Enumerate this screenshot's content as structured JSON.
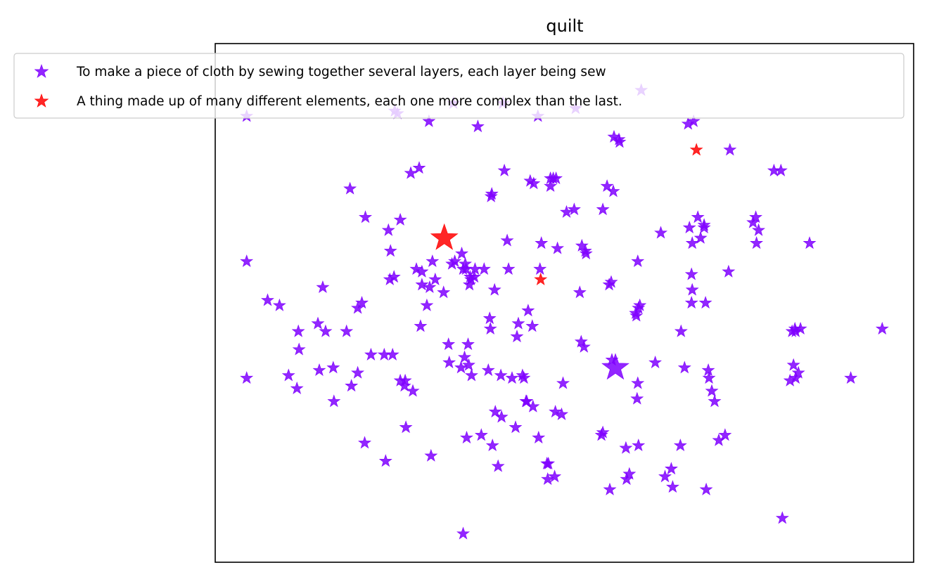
{
  "chart_data": {
    "type": "scatter",
    "title": "quilt",
    "xlabel": "",
    "ylabel": "",
    "xlim": [
      0,
      100
    ],
    "ylim": [
      0,
      100
    ],
    "grid": false,
    "legend_position": "top",
    "series": [
      {
        "name": "To make a piece of cloth by sewing together several layers, each layer being sew",
        "color": "#7f00ff",
        "marker": "star",
        "points": [
          [
            4.5,
            86
          ],
          [
            4.5,
            58
          ],
          [
            4.5,
            35.5
          ],
          [
            7.5,
            50.5
          ],
          [
            9.2,
            49.5
          ],
          [
            10.5,
            36
          ],
          [
            11.7,
            33.5
          ],
          [
            11.9,
            44.5
          ],
          [
            12,
            41
          ],
          [
            14.7,
            46
          ],
          [
            14.9,
            37
          ],
          [
            15.4,
            53
          ],
          [
            15.8,
            44.5
          ],
          [
            16.9,
            37.5
          ],
          [
            17,
            31
          ],
          [
            18.8,
            44.5
          ],
          [
            19.5,
            34
          ],
          [
            19.3,
            72
          ],
          [
            20.4,
            36.5
          ],
          [
            20.4,
            49
          ],
          [
            21,
            50
          ],
          [
            21.4,
            23
          ],
          [
            21.5,
            66.5
          ],
          [
            22.3,
            40
          ],
          [
            24.2,
            40
          ],
          [
            24.4,
            19.5
          ],
          [
            24.8,
            64
          ],
          [
            25,
            54.5
          ],
          [
            25.1,
            60
          ],
          [
            25.4,
            40
          ],
          [
            25.6,
            55
          ],
          [
            25.7,
            87
          ],
          [
            26.1,
            86.5
          ],
          [
            26.5,
            66
          ],
          [
            26.5,
            35
          ],
          [
            27.1,
            34
          ],
          [
            27.2,
            35
          ],
          [
            27.3,
            26
          ],
          [
            28.3,
            33
          ],
          [
            28.8,
            56.5
          ],
          [
            28,
            75
          ],
          [
            29.2,
            76
          ],
          [
            29.4,
            45.5
          ],
          [
            29.6,
            56
          ],
          [
            29.6,
            53.5
          ],
          [
            30.3,
            49.5
          ],
          [
            30.6,
            85
          ],
          [
            30.7,
            53
          ],
          [
            30.9,
            20.5
          ],
          [
            31.1,
            58
          ],
          [
            31.5,
            54.5
          ],
          [
            32.7,
            52
          ],
          [
            33.4,
            42
          ],
          [
            33.5,
            38.5
          ],
          [
            34.1,
            88.5
          ],
          [
            33.9,
            57.5
          ],
          [
            34.3,
            58
          ],
          [
            35.2,
            37.5
          ],
          [
            35.3,
            59.5
          ],
          [
            35.5,
            56.5
          ],
          [
            35.7,
            39.5
          ],
          [
            35.8,
            57.5
          ],
          [
            35.9,
            56.5
          ],
          [
            36.2,
            42
          ],
          [
            36.3,
            38
          ],
          [
            36,
            24
          ],
          [
            35.5,
            5.5
          ],
          [
            36.4,
            53.5
          ],
          [
            36.6,
            54.5
          ],
          [
            36.5,
            55
          ],
          [
            36.7,
            36
          ],
          [
            37.1,
            55
          ],
          [
            37.2,
            56.5
          ],
          [
            37.6,
            84
          ],
          [
            38.1,
            24.5
          ],
          [
            38.5,
            56.5
          ],
          [
            39.1,
            37
          ],
          [
            39.5,
            70.5
          ],
          [
            39.6,
            71
          ],
          [
            39.3,
            47
          ],
          [
            39.4,
            45
          ],
          [
            40,
            52.5
          ],
          [
            39.7,
            22.5
          ],
          [
            40.1,
            29
          ],
          [
            40.5,
            18.5
          ],
          [
            40.9,
            36
          ],
          [
            41.2,
            88.5
          ],
          [
            41,
            28
          ],
          [
            41.4,
            75.5
          ],
          [
            42,
            56.5
          ],
          [
            41.8,
            62
          ],
          [
            42.5,
            35.5
          ],
          [
            43,
            26
          ],
          [
            43.4,
            46
          ],
          [
            43.2,
            43.5
          ],
          [
            44,
            36
          ],
          [
            44.2,
            35.5
          ],
          [
            44.6,
            31
          ],
          [
            44.8,
            48.5
          ],
          [
            44.5,
            31
          ],
          [
            45.1,
            73.5
          ],
          [
            45.4,
            45.5
          ],
          [
            45.5,
            30
          ],
          [
            45.6,
            73
          ],
          [
            46.2,
            86
          ],
          [
            46.5,
            56.5
          ],
          [
            46.3,
            24
          ],
          [
            46.7,
            61.5
          ],
          [
            47.5,
            19
          ],
          [
            48,
            74
          ],
          [
            48,
            72.5
          ],
          [
            47.6,
            16
          ],
          [
            47.7,
            19
          ],
          [
            48.4,
            74
          ],
          [
            48.8,
            74
          ],
          [
            48.7,
            29
          ],
          [
            49,
            60.5
          ],
          [
            49.6,
            28.5
          ],
          [
            49.8,
            34.5
          ],
          [
            48.6,
            16.5
          ],
          [
            51.6,
            87.5
          ],
          [
            51.4,
            68
          ],
          [
            50.3,
            67.5
          ],
          [
            52.2,
            52
          ],
          [
            52.5,
            61
          ],
          [
            53.1,
            59.5
          ],
          [
            53,
            60
          ],
          [
            52.4,
            42.5
          ],
          [
            52.8,
            41.5
          ],
          [
            55.3,
            24.5
          ],
          [
            55.5,
            68
          ],
          [
            55.5,
            25
          ],
          [
            56.4,
            53.5
          ],
          [
            56.7,
            54
          ],
          [
            56.8,
            39
          ],
          [
            56.1,
            72.5
          ],
          [
            57,
            71.5
          ],
          [
            56.5,
            14
          ],
          [
            57.1,
            82
          ],
          [
            57.9,
            81
          ],
          [
            57.8,
            81.5
          ],
          [
            58.8,
            22
          ],
          [
            59.3,
            17
          ],
          [
            58.9,
            16
          ],
          [
            60.2,
            48
          ],
          [
            60.3,
            47.5
          ],
          [
            60.5,
            34.5
          ],
          [
            60.6,
            22.5
          ],
          [
            60.5,
            58
          ],
          [
            60.4,
            31.5
          ],
          [
            60.6,
            49
          ],
          [
            60.8,
            49.5
          ],
          [
            61,
            91
          ],
          [
            63,
            38.5
          ],
          [
            63.8,
            63.5
          ],
          [
            64.4,
            16.5
          ],
          [
            65.3,
            18
          ],
          [
            66.6,
            22.5
          ],
          [
            65.5,
            14.5
          ],
          [
            66.7,
            44.5
          ],
          [
            67.2,
            37.5
          ],
          [
            67.9,
            64.5
          ],
          [
            68.3,
            61.5
          ],
          [
            68.2,
            55.5
          ],
          [
            68.3,
            52.5
          ],
          [
            68.2,
            50
          ],
          [
            67.7,
            84.5
          ],
          [
            68.5,
            85
          ],
          [
            69.1,
            66.5
          ],
          [
            69.5,
            62.5
          ],
          [
            70,
            64.5
          ],
          [
            70,
            65
          ],
          [
            70.2,
            50
          ],
          [
            70.3,
            14
          ],
          [
            70.6,
            37
          ],
          [
            70.7,
            35.5
          ],
          [
            71.1,
            33
          ],
          [
            71.5,
            31
          ],
          [
            72.1,
            23.5
          ],
          [
            73,
            24.5
          ],
          [
            73.5,
            56
          ],
          [
            73.7,
            79.5
          ],
          [
            77,
            65.5
          ],
          [
            77.4,
            66.5
          ],
          [
            77.8,
            64
          ],
          [
            77.5,
            61.5
          ],
          [
            80,
            75.5
          ],
          [
            81.2,
            8.5
          ],
          [
            81,
            75.5
          ],
          [
            82.6,
            44.5
          ],
          [
            83.1,
            44.5
          ],
          [
            83,
            45
          ],
          [
            83.5,
            36.5
          ],
          [
            83.8,
            45
          ],
          [
            82.8,
            38
          ],
          [
            82.3,
            35
          ],
          [
            83.1,
            35.5
          ],
          [
            85.1,
            61.5
          ],
          [
            91,
            35.5
          ],
          [
            95.5,
            45
          ]
        ]
      },
      {
        "name": "A thing made up of many different elements, each one more complex than the last.",
        "color": "#ff0000",
        "marker": "star",
        "points": [
          [
            68.9,
            79.5
          ],
          [
            46.6,
            54.5
          ]
        ]
      }
    ],
    "highlights": [
      {
        "series": 0,
        "point": [
          57.3,
          37.5
        ],
        "size": "large"
      },
      {
        "series": 1,
        "point": [
          32.8,
          62.5
        ],
        "size": "large"
      }
    ]
  }
}
